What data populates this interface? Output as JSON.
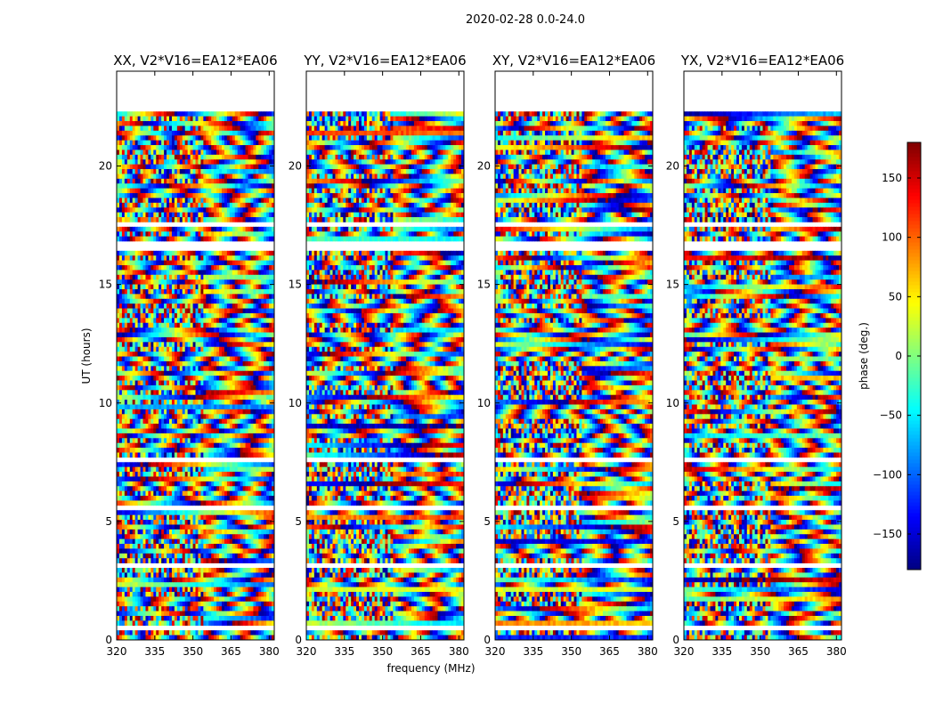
{
  "chart_data": {
    "type": "heatmap",
    "title": "2020-02-28 0.0-24.0",
    "xlabel": "frequency (MHz)",
    "ylabel": "UT (hours)",
    "colorbar_label": "phase (deg.)",
    "xlim": [
      320,
      382
    ],
    "ylim": [
      0,
      24
    ],
    "x_ticks": [
      320,
      335,
      350,
      365,
      380
    ],
    "y_ticks": [
      0,
      5,
      10,
      15,
      20
    ],
    "clim": [
      -180,
      180
    ],
    "colorbar_ticks": [
      -150,
      -100,
      -50,
      0,
      50,
      100,
      150
    ],
    "colormap": "jet",
    "data_end_ut": 22.3,
    "flagged_ut_ranges": [
      [
        0.45,
        0.55
      ],
      [
        0.95,
        1.1
      ],
      [
        2.95,
        3.15
      ],
      [
        5.55,
        5.7
      ],
      [
        7.6,
        7.8
      ],
      [
        10.3,
        10.4
      ],
      [
        11.5,
        11.6
      ],
      [
        16.5,
        16.75
      ],
      [
        17.45,
        17.55
      ]
    ],
    "panels": [
      {
        "title": "XX, V2*V16=EA12*EA06"
      },
      {
        "title": "YY, V2*V16=EA12*EA06"
      },
      {
        "title": "XY, V2*V16=EA12*EA06"
      },
      {
        "title": "YX, V2*V16=EA12*EA06"
      }
    ]
  }
}
